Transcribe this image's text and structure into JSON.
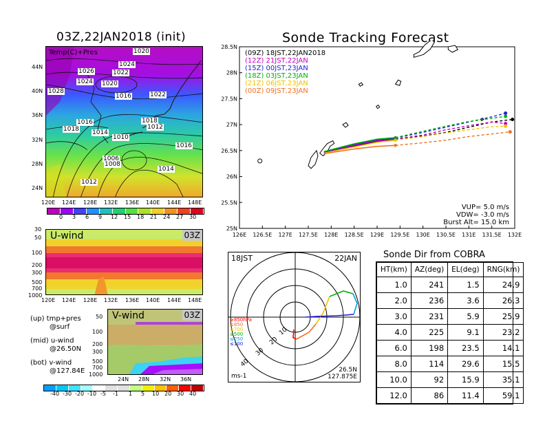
{
  "map_panel": {
    "title": "03Z,22JAN2018 (init)",
    "field_label": "Temp(C)+Pres",
    "lat_ticks": [
      "44N",
      "40N",
      "36N",
      "32N",
      "28N",
      "24N"
    ],
    "lon_ticks": [
      "120E",
      "124E",
      "128E",
      "132E",
      "136E",
      "140E",
      "144E",
      "148E"
    ],
    "isobar_labels": [
      {
        "text": "1020"
      },
      {
        "text": "1024"
      },
      {
        "text": "1026"
      },
      {
        "text": "1022"
      },
      {
        "text": "1024"
      },
      {
        "text": "1020"
      },
      {
        "text": "1028"
      },
      {
        "text": "1016"
      },
      {
        "text": "1022"
      },
      {
        "text": "1016"
      },
      {
        "text": "1018"
      },
      {
        "text": "1018"
      },
      {
        "text": "1012"
      },
      {
        "text": "1014"
      },
      {
        "text": "1010"
      },
      {
        "text": "1016"
      },
      {
        "text": "1006"
      },
      {
        "text": "1008"
      },
      {
        "text": "1014"
      },
      {
        "text": "1012"
      }
    ],
    "colorbar": [
      "0",
      "3",
      "6",
      "9",
      "12",
      "15",
      "18",
      "21",
      "24",
      "27",
      "30"
    ],
    "colorbar_colors": [
      "#c000c0",
      "#a000ff",
      "#4040ff",
      "#2090ff",
      "#20c0c0",
      "#20d070",
      "#50e040",
      "#b0e020",
      "#f0d020",
      "#f09020",
      "#f04020",
      "#e00020"
    ]
  },
  "uwind_panel": {
    "title": "U-wind",
    "time": "03Z",
    "p_ticks": [
      "30",
      "50",
      "100",
      "200",
      "300",
      "500",
      "700",
      "1000"
    ],
    "lon_ticks": [
      "120E",
      "124E",
      "128E",
      "132E",
      "136E",
      "140E",
      "144E",
      "148E"
    ]
  },
  "vwind_panel": {
    "title": "V-wind",
    "time": "03Z",
    "p_ticks": [
      "50",
      "100",
      "200",
      "300",
      "500",
      "700",
      "1000"
    ],
    "lat_ticks": [
      "24N",
      "28N",
      "32N",
      "36N"
    ],
    "colorbar": [
      "-40",
      "-30",
      "-20",
      "-10",
      "-5",
      "-1",
      "1",
      "5",
      "10",
      "20",
      "30",
      "40"
    ],
    "colorbar_colors": [
      "#00a0ff",
      "#00c8ff",
      "#40e0ff",
      "#a0ffff",
      "#ffffff",
      "#e0e0e0",
      "#e0e0e0",
      "#c0ff80",
      "#f0f000",
      "#ffc000",
      "#ff6000",
      "#ff0000",
      "#c00000"
    ]
  },
  "legend_notes": [
    {
      "line1": "(up) tmp+pres",
      "line2": "@surf"
    },
    {
      "line1": "(mid) u-wind",
      "line2": "@26.50N"
    },
    {
      "line1": "(bot) v-wind",
      "line2": "@127.84E"
    }
  ],
  "chart_data": {
    "type": "line",
    "title": "Sonde Tracking Forecast",
    "xlim": [
      126,
      132
    ],
    "ylim": [
      25,
      28.5
    ],
    "x_ticks": [
      "126E",
      "126.5E",
      "127E",
      "127.5E",
      "128E",
      "128.5E",
      "129E",
      "129.5E",
      "130E",
      "130.5E",
      "131E",
      "131.5E",
      "132E"
    ],
    "y_ticks": [
      "25N",
      "25.5N",
      "26N",
      "26.5N",
      "27N",
      "27.5N",
      "28N",
      "28.5N"
    ],
    "series": [
      {
        "name": "(09Z)  18JST,22JAN2018",
        "color": "#000000",
        "points": [
          [
            127.84,
            26.45
          ],
          [
            128.5,
            26.58
          ],
          [
            129.0,
            26.68
          ],
          [
            129.4,
            26.72
          ],
          [
            130.0,
            26.78
          ],
          [
            130.5,
            26.85
          ],
          [
            131.0,
            26.95
          ],
          [
            131.5,
            27.05
          ],
          [
            131.95,
            27.1
          ]
        ]
      },
      {
        "name": "(12Z)  21JST,22JAN",
        "color": "#c000c0",
        "points": [
          [
            127.84,
            26.46
          ],
          [
            128.5,
            26.6
          ],
          [
            129.0,
            26.69
          ],
          [
            129.4,
            26.72
          ],
          [
            130.0,
            26.8
          ],
          [
            130.5,
            26.9
          ],
          [
            131.0,
            26.98
          ],
          [
            131.5,
            27.05
          ],
          [
            131.8,
            27.02
          ]
        ]
      },
      {
        "name": "(15Z)  00JST,23JAN",
        "color": "#2020e0",
        "points": [
          [
            127.84,
            26.47
          ],
          [
            128.5,
            26.62
          ],
          [
            129.0,
            26.71
          ],
          [
            129.4,
            26.74
          ],
          [
            130.0,
            26.85
          ],
          [
            130.5,
            26.95
          ],
          [
            131.0,
            27.05
          ],
          [
            131.5,
            27.15
          ],
          [
            131.8,
            27.22
          ]
        ]
      },
      {
        "name": "(18Z)  03JST,23JAN",
        "color": "#00b000",
        "points": [
          [
            127.84,
            26.48
          ],
          [
            128.5,
            26.63
          ],
          [
            129.0,
            26.72
          ],
          [
            129.4,
            26.75
          ],
          [
            130.0,
            26.87
          ],
          [
            130.5,
            26.97
          ],
          [
            131.0,
            27.06
          ],
          [
            131.5,
            27.12
          ],
          [
            131.8,
            27.16
          ]
        ]
      },
      {
        "name": "(21Z)  06JST,23JAN",
        "color": "#f0c000",
        "points": [
          [
            127.84,
            26.45
          ],
          [
            128.5,
            26.57
          ],
          [
            129.0,
            26.66
          ],
          [
            129.4,
            26.7
          ],
          [
            130.0,
            26.77
          ],
          [
            130.5,
            26.84
          ],
          [
            131.0,
            26.9
          ],
          [
            131.5,
            26.96
          ],
          [
            131.8,
            26.97
          ]
        ]
      },
      {
        "name": "(00Z)  09JST,23JAN",
        "color": "#f07020",
        "points": [
          [
            127.84,
            26.44
          ],
          [
            128.5,
            26.53
          ],
          [
            129.0,
            26.58
          ],
          [
            129.4,
            26.6
          ],
          [
            130.0,
            26.65
          ],
          [
            130.5,
            26.7
          ],
          [
            131.0,
            26.77
          ],
          [
            131.5,
            26.82
          ],
          [
            131.9,
            26.86
          ]
        ]
      }
    ],
    "annotations": [
      "VUP=  5.0  m/s",
      "VDW= -3.0  m/s",
      "Burst Alt=  15.0  km"
    ]
  },
  "polar_panel": {
    "time_left": "18JST",
    "date_right": "22JAN",
    "ring_labels": [
      "10",
      "20",
      "30",
      "40"
    ],
    "unit": "ms-1",
    "location_line1": "26.5N",
    "location_line2": "127.875E",
    "level_legend": [
      {
        "text": "≥850hPa",
        "color": "#ff0000"
      },
      {
        "text": "≤850",
        "color": "#f07020"
      },
      {
        "text": "≤700",
        "color": "#f0c000"
      },
      {
        "text": "≤500",
        "color": "#00b000"
      },
      {
        "text": "≤250",
        "color": "#00a0e0"
      },
      {
        "text": "≤100",
        "color": "#2020e0"
      }
    ]
  },
  "sonde_table": {
    "title": "Sonde Dir from COBRA",
    "headers": [
      "HT(km)",
      "AZ(deg)",
      "EL(deg)",
      "RNG(km)"
    ],
    "rows": [
      [
        "1.0",
        "241",
        "1.5",
        "24.9"
      ],
      [
        "2.0",
        "236",
        "3.6",
        "26.3"
      ],
      [
        "3.0",
        "231",
        "5.9",
        "25.9"
      ],
      [
        "4.0",
        "225",
        "9.1",
        "23.2"
      ],
      [
        "6.0",
        "198",
        "23.5",
        "14.1"
      ],
      [
        "8.0",
        "114",
        "29.6",
        "15.5"
      ],
      [
        "10.0",
        "92",
        "15.9",
        "35.1"
      ],
      [
        "12.0",
        "86",
        "11.4",
        "59.1"
      ]
    ]
  }
}
